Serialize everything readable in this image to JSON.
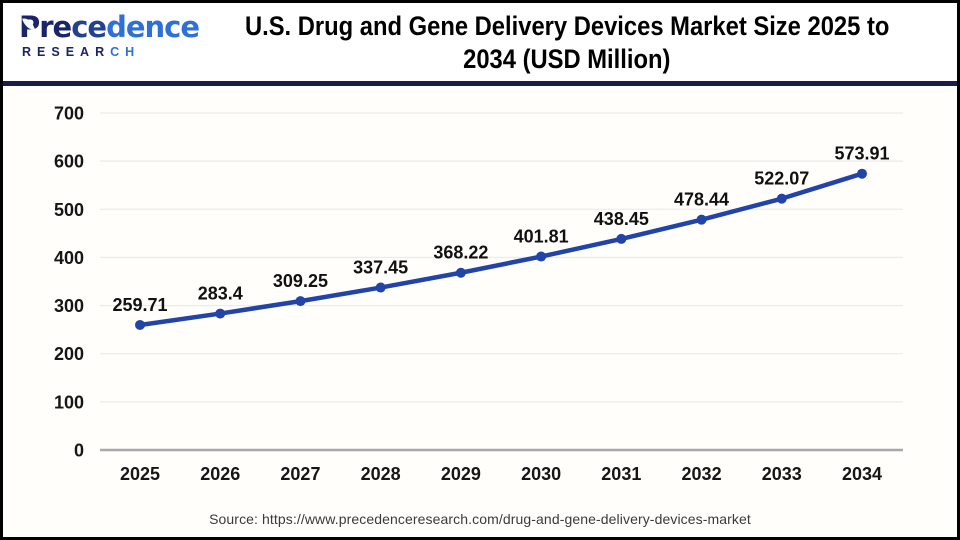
{
  "header": {
    "logo": {
      "name_part1": "Pre",
      "name_part2": "ce",
      "name_part3": "dence",
      "sub_part1": "RESEAR",
      "sub_part2": "CH"
    },
    "title_line1": "U.S. Drug and Gene Delivery Devices Market Size 2025 to",
    "title_line2": "2034 (USD Million)"
  },
  "chart_data": {
    "type": "line",
    "title": "U.S. Drug and Gene Delivery Devices Market Size 2025 to 2034 (USD Million)",
    "categories": [
      "2025",
      "2026",
      "2027",
      "2028",
      "2029",
      "2030",
      "2031",
      "2032",
      "2033",
      "2034"
    ],
    "values": [
      259.71,
      283.4,
      309.25,
      337.45,
      368.22,
      401.81,
      438.45,
      478.44,
      522.07,
      573.91
    ],
    "value_labels": [
      "259.71",
      "283.4",
      "309.25",
      "337.45",
      "368.22",
      "401.81",
      "438.45",
      "478.44",
      "522.07",
      "573.91"
    ],
    "xlabel": "",
    "ylabel": "",
    "ylim": [
      0,
      700
    ],
    "ytick_step": 100,
    "grid": true,
    "legend": "none",
    "line_color": "#2243a8",
    "marker": "circle",
    "gridline_color": "#ebebeb",
    "axis_line_color": "#a8a8a8",
    "label_color": "#111111"
  },
  "footer": {
    "source": "Source: https://www.precedenceresearch.com/drug-and-gene-delivery-devices-market"
  }
}
